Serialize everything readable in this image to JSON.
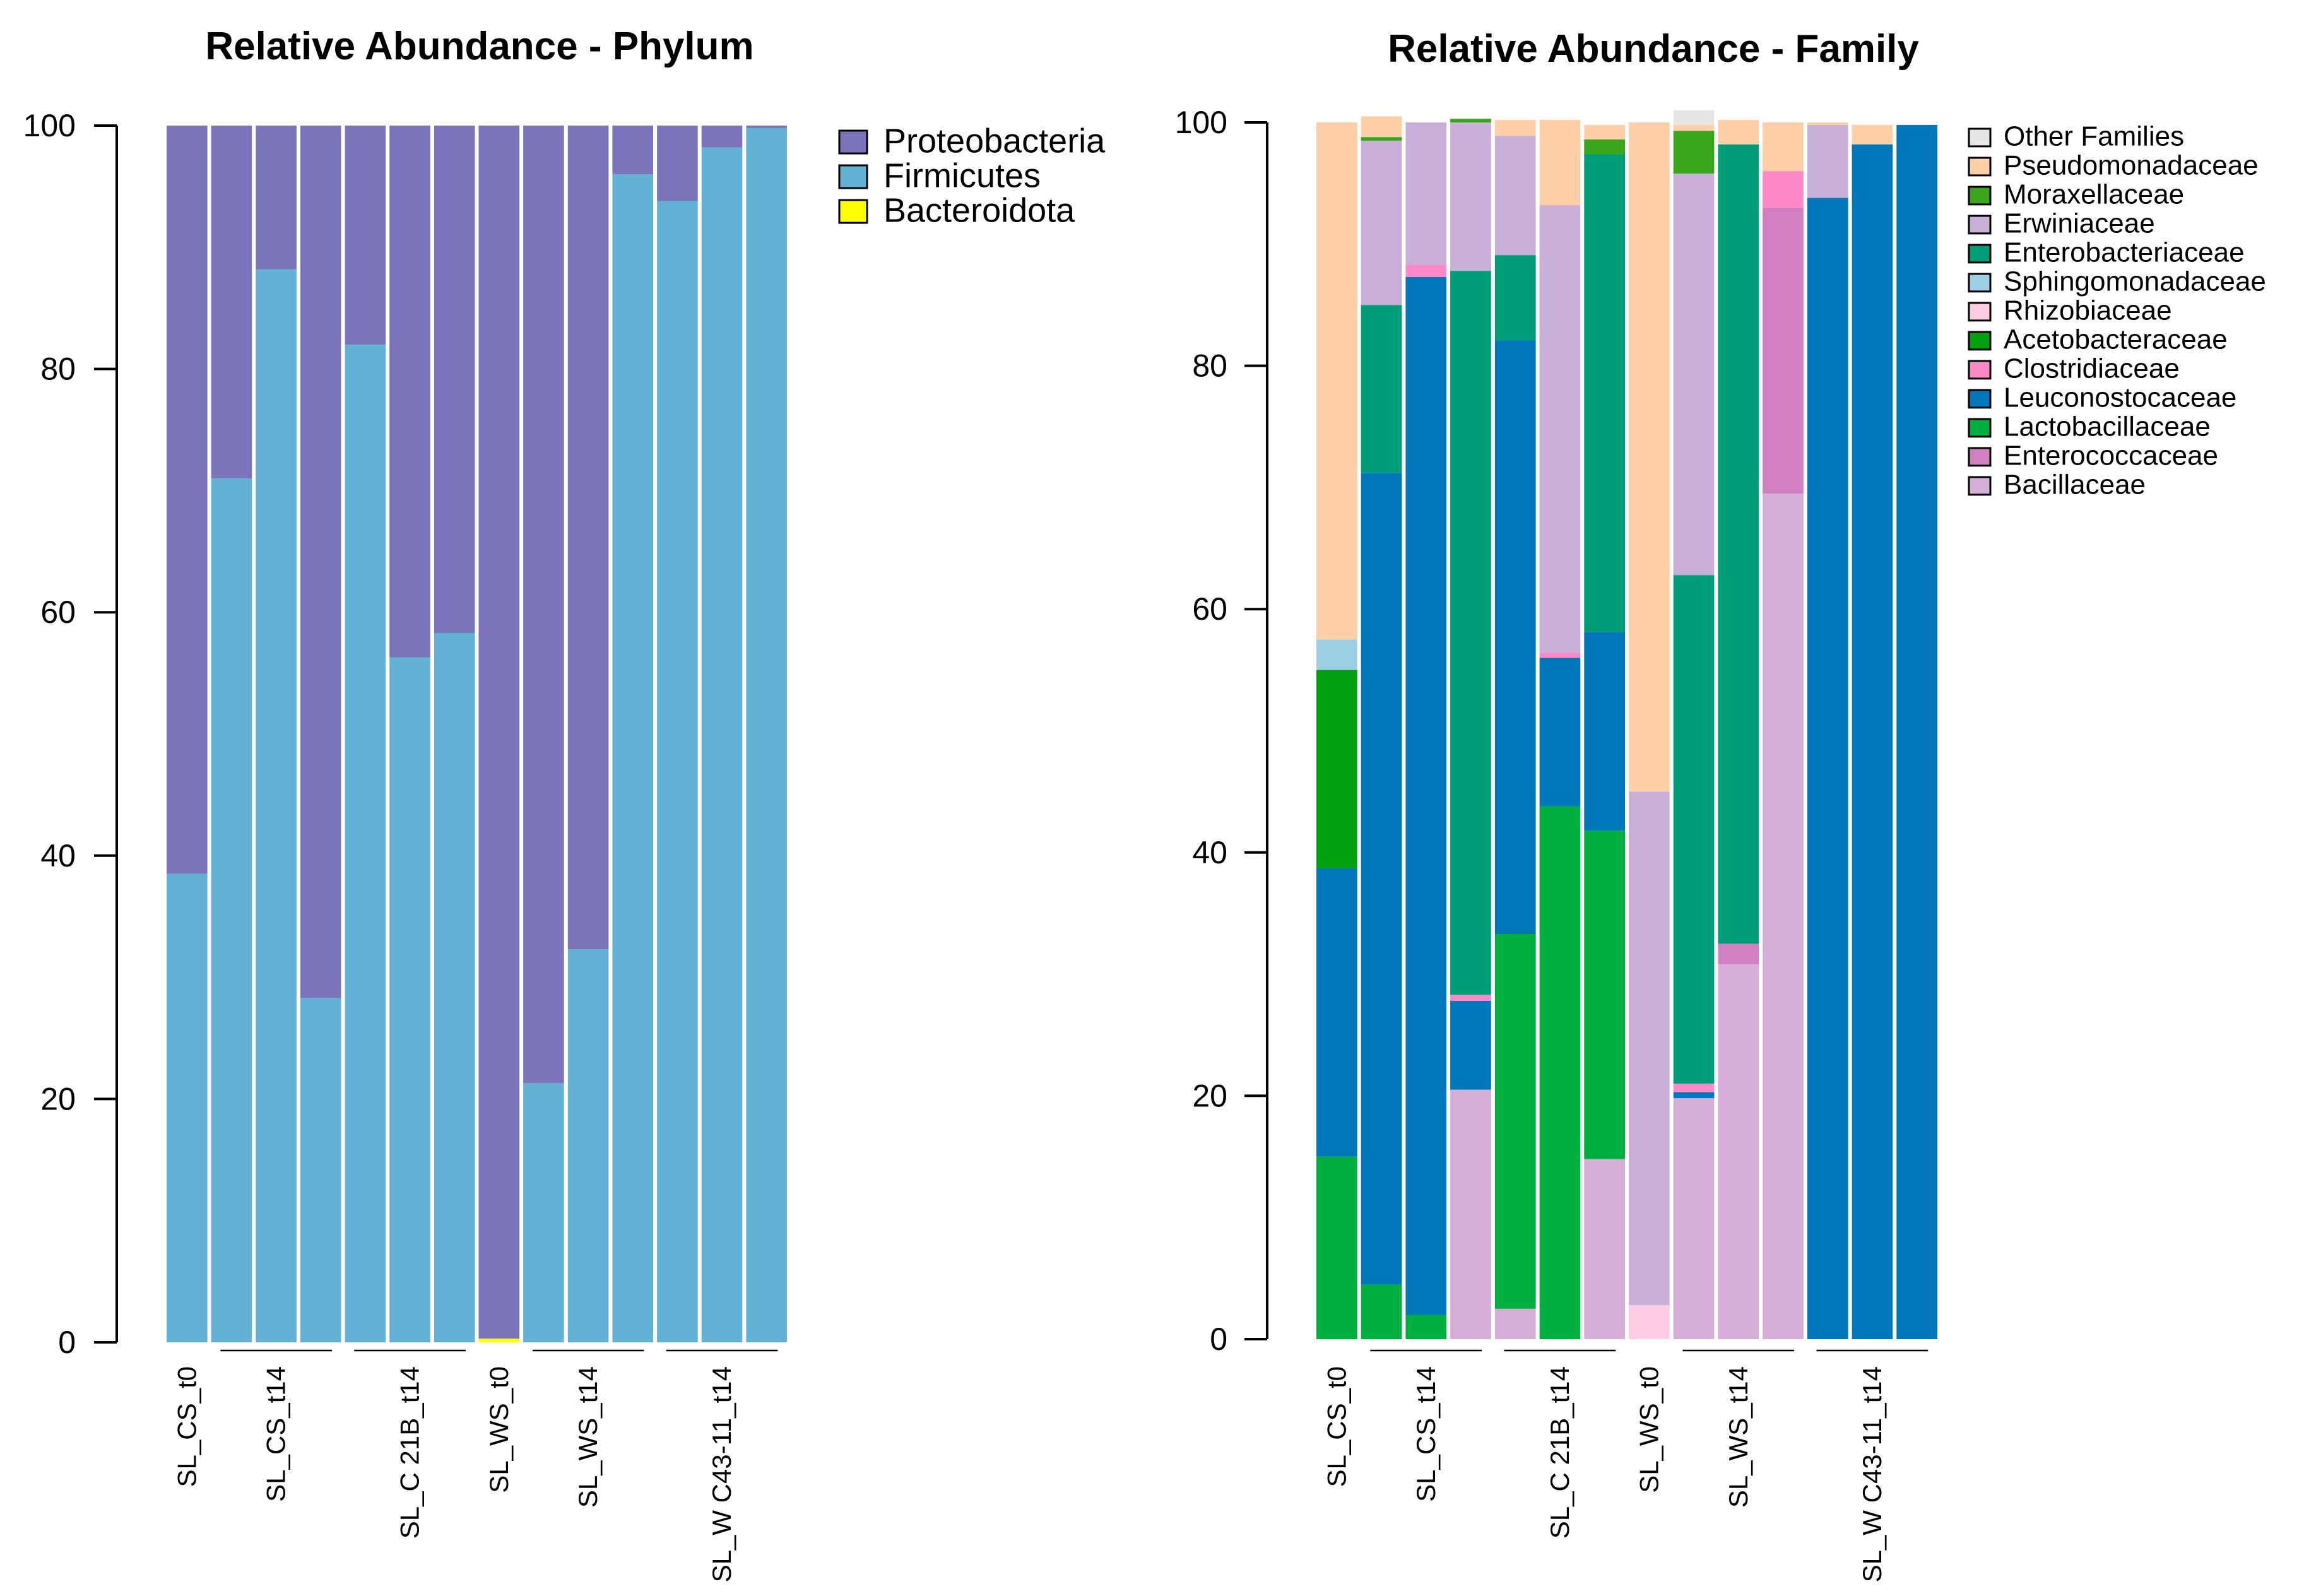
{
  "chart_data": [
    {
      "type": "bar",
      "stacked": true,
      "title": "Relative Abundance - Phylum",
      "xlabel": "",
      "ylabel": "",
      "ylim": [
        0,
        100
      ],
      "yticks": [
        0,
        20,
        40,
        60,
        80,
        100
      ],
      "legend_position": "top-right",
      "group_labels": [
        "SL_CS_t0",
        "SL_CS_t14",
        "SL_C 21B_t14",
        "SL_WS_t0",
        "SL_WS_t14",
        "SL_W C43-11_t14"
      ],
      "groups": [
        [
          0,
          0
        ],
        [
          1,
          3
        ],
        [
          4,
          6
        ],
        [
          7,
          7
        ],
        [
          8,
          10
        ],
        [
          11,
          13
        ]
      ],
      "bars": 14,
      "series": [
        {
          "name": "Bacteroidota",
          "color": "#FFFF00",
          "values": [
            0,
            0,
            0,
            0,
            0,
            0,
            0,
            0.3,
            0,
            0,
            0,
            0,
            0,
            0
          ]
        },
        {
          "name": "Firmicutes",
          "color": "#63B2D6",
          "values": [
            38.5,
            71,
            88.2,
            28.3,
            82,
            56.3,
            58.3,
            0,
            21.3,
            32.3,
            96,
            93.8,
            98.2,
            99.8
          ]
        },
        {
          "name": "Proteobacteria",
          "color": "#7B74BB",
          "values": [
            61.5,
            29,
            11.8,
            71.7,
            18,
            43.7,
            41.7,
            99.7,
            78.7,
            67.7,
            4,
            6.2,
            1.8,
            0.2
          ]
        }
      ],
      "legend_order": [
        "Proteobacteria",
        "Firmicutes",
        "Bacteroidota"
      ]
    },
    {
      "type": "bar",
      "stacked": true,
      "title": "Relative Abundance - Family",
      "xlabel": "",
      "ylabel": "",
      "ylim": [
        0,
        100
      ],
      "yticks": [
        0,
        20,
        40,
        60,
        80,
        100
      ],
      "legend_position": "top-right",
      "group_labels": [
        "SL_CS_t0",
        "SL_CS_t14",
        "SL_C 21B_t14",
        "SL_WS_t0",
        "SL_WS_t14",
        "SL_W C43-11_t14"
      ],
      "groups": [
        [
          0,
          0
        ],
        [
          1,
          3
        ],
        [
          4,
          6
        ],
        [
          7,
          7
        ],
        [
          8,
          10
        ],
        [
          11,
          13
        ]
      ],
      "bars": 14,
      "series": [
        {
          "name": "Bacillaceae",
          "color": "#D5AFD8",
          "values": [
            0,
            0,
            0,
            20.5,
            2.5,
            0,
            14.8,
            0,
            19.8,
            30.8,
            69.5,
            0,
            0,
            0
          ]
        },
        {
          "name": "Enterococcaceae",
          "color": "#D080C0",
          "values": [
            0,
            0,
            0,
            0,
            0,
            0,
            0,
            0,
            0,
            1.7,
            23.5,
            0,
            0,
            0
          ]
        },
        {
          "name": "Lactobacillaceae",
          "color": "#00AF40",
          "values": [
            15,
            4.5,
            2,
            0,
            30.8,
            43.8,
            27,
            0,
            0,
            0,
            0,
            0,
            0,
            0
          ]
        },
        {
          "name": "Leuconostocaceae",
          "color": "#0077BA",
          "values": [
            23.7,
            66.7,
            85.3,
            7.3,
            48.8,
            12.2,
            16.3,
            0,
            0.5,
            0,
            0,
            93.8,
            98.2,
            99.8
          ]
        },
        {
          "name": "Clostridiaceae",
          "color": "#FF88C8",
          "values": [
            0,
            0,
            1,
            0.5,
            0,
            0.4,
            0,
            0,
            0.7,
            0,
            3,
            0,
            0,
            0
          ]
        },
        {
          "name": "Acetobacteraceae",
          "color": "#00A010",
          "values": [
            16.3,
            0,
            0,
            0,
            0,
            0,
            0,
            0,
            0,
            0,
            0,
            0,
            0,
            0
          ]
        },
        {
          "name": "Rhizobiaceae",
          "color": "#FFCCE4",
          "values": [
            0,
            0,
            0,
            0,
            0,
            0,
            0,
            2.8,
            0,
            0,
            0,
            0,
            0,
            0
          ]
        },
        {
          "name": "Sphingomonadaceae",
          "color": "#9CCEE4",
          "values": [
            2.5,
            0,
            0,
            0,
            0,
            0,
            0,
            0,
            0,
            0,
            0,
            0,
            0,
            0
          ]
        },
        {
          "name": "Enterobacteriaceae",
          "color": "#009E78",
          "values": [
            0,
            13.8,
            0,
            59.5,
            7,
            0,
            39.3,
            0,
            41.8,
            65.7,
            0,
            0,
            0,
            0
          ]
        },
        {
          "name": "Erwiniaceae",
          "color": "#C8B0D8",
          "values": [
            0,
            13.5,
            11.7,
            12.2,
            9.8,
            36.8,
            0,
            42.2,
            33,
            0,
            0,
            6,
            0,
            0
          ]
        },
        {
          "name": "Moraxellaceae",
          "color": "#3AA61E",
          "values": [
            0,
            0.3,
            0,
            0.3,
            0,
            0,
            1.2,
            0,
            3.5,
            0,
            0,
            0,
            0,
            0
          ]
        },
        {
          "name": "Pseudomonadaceae",
          "color": "#FFCFA8",
          "values": [
            42.5,
            1.7,
            0,
            0,
            1.3,
            7,
            1.2,
            55,
            0.5,
            2,
            4,
            0.2,
            1.6,
            0
          ]
        },
        {
          "name": "Other Families",
          "color": "#E6E6E6",
          "values": [
            0,
            0,
            0,
            0,
            0,
            0,
            0,
            0,
            1.2,
            0,
            0,
            0,
            0,
            0
          ]
        }
      ],
      "legend_order": [
        "Other Families",
        "Pseudomonadaceae",
        "Moraxellaceae",
        "Erwiniaceae",
        "Enterobacteriaceae",
        "Sphingomonadaceae",
        "Rhizobiaceae",
        "Acetobacteraceae",
        "Clostridiaceae",
        "Leuconostocaceae",
        "Lactobacillaceae",
        "Enterococcaceae",
        "Bacillaceae"
      ]
    }
  ]
}
